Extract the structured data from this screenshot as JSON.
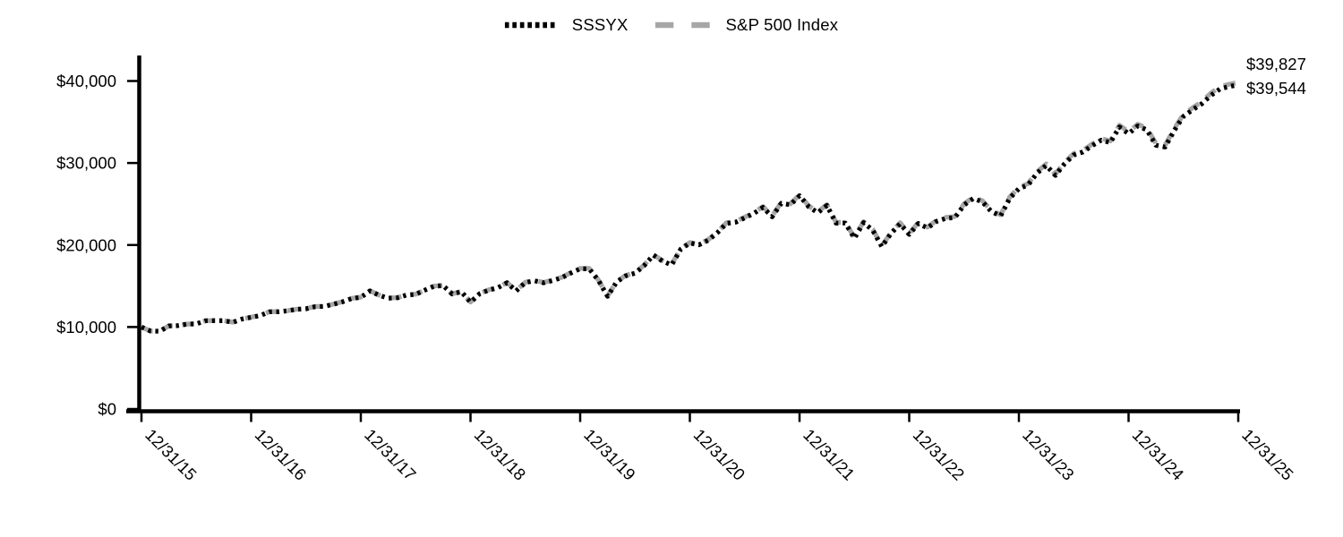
{
  "chart": {
    "kind": "fund-growth-line-chart",
    "background": "#ffffff",
    "axis_color": "#000000",
    "text_color": "#000000"
  },
  "chart_data": {
    "type": "line",
    "title": "",
    "xlabel": "",
    "ylabel": "",
    "x_frequency": "monthly",
    "x_start": "12/31/15",
    "x_end": "12/31/25",
    "x_tick_labels": [
      "12/31/15",
      "12/31/16",
      "12/31/17",
      "12/31/18",
      "12/31/19",
      "12/31/20",
      "12/31/21",
      "12/31/22",
      "12/31/23",
      "12/31/24",
      "12/31/25"
    ],
    "y_ticks": [
      0,
      10000,
      20000,
      30000,
      40000
    ],
    "y_tick_labels": [
      "$0",
      "$10,000",
      "$20,000",
      "$30,000",
      "$40,000"
    ],
    "ylim": [
      0,
      40000
    ],
    "grid": false,
    "legend_position": "top-center",
    "annotations": [
      {
        "text": "$39,827",
        "series": "S&P 500 Index"
      },
      {
        "text": "$39,544",
        "series": "SSSYX"
      }
    ],
    "series": [
      {
        "name": "SSSYX",
        "color": "#000000",
        "legend_style": "dotted",
        "final_value": 39544,
        "values": [
          10000,
          9502,
          9489,
          10132,
          10171,
          10353,
          10379,
          10762,
          10776,
          10777,
          10580,
          10971,
          11187,
          11399,
          11851,
          11864,
          11986,
          12154,
          12229,
          12479,
          12517,
          12774,
          13072,
          13472,
          13621,
          14400,
          13869,
          13515,
          13566,
          13892,
          13977,
          14496,
          14968,
          15052,
          14023,
          14307,
          13015,
          14057,
          14507,
          14789,
          15386,
          14408,
          15423,
          15643,
          15394,
          15681,
          16019,
          16600,
          17100,
          17092,
          15684,
          13746,
          15508,
          16245,
          16567,
          17500,
          18757,
          18043,
          17562,
          19483,
          20231,
          20025,
          20576,
          21477,
          22621,
          22778,
          23309,
          23861,
          24585,
          23440,
          25081,
          24906,
          26021,
          24673,
          23933,
          24820,
          22654,
          22694,
          20820,
          22738,
          21809,
          19800,
          21402,
          22597,
          21294,
          22630,
          22076,
          22886,
          23242,
          23342,
          24882,
          25680,
          25270,
          24063,
          23556,
          25705,
          26872,
          27322,
          28780,
          29704,
          28489,
          29900,
          30971,
          31346,
          32104,
          32788,
          32489,
          34395,
          33575,
          34507,
          34038,
          32168,
          31948,
          33963,
          35689,
          36481,
          37214,
          38235,
          39027,
          39323,
          39544
        ]
      },
      {
        "name": "S&P 500 Index",
        "color": "#a6a6a6",
        "legend_style": "dashed",
        "final_value": 39827,
        "values": [
          10000,
          9503,
          9490,
          10134,
          10173,
          10356,
          10383,
          10766,
          10781,
          10783,
          10586,
          10978,
          11195,
          11408,
          11861,
          11875,
          11997,
          12166,
          12242,
          12493,
          12532,
          12790,
          13089,
          13490,
          13640,
          14421,
          13890,
          13537,
          13589,
          13916,
          14002,
          14523,
          14996,
          15081,
          14051,
          14337,
          13043,
          14088,
          14540,
          14823,
          15423,
          14443,
          15461,
          15683,
          15434,
          15723,
          16063,
          16646,
          17149,
          17142,
          15731,
          13788,
          15556,
          16296,
          16620,
          17557,
          18819,
          18104,
          17622,
          19551,
          20303,
          20098,
          20652,
          21557,
          22707,
          22866,
          23400,
          23956,
          24684,
          23536,
          25185,
          25011,
          26132,
          24780,
          24038,
          24930,
          22756,
          22798,
          20916,
          22845,
          21913,
          19895,
          21506,
          22708,
          21400,
          22744,
          22189,
          23004,
          23363,
          23465,
          25015,
          25819,
          25408,
          24196,
          23687,
          25850,
          27025,
          27479,
          28947,
          29878,
          28658,
          30079,
          31158,
          31537,
          32302,
          32992,
          32693,
          34613,
          33790,
          34730,
          34260,
          32380,
          32160,
          34190,
          35930,
          36730,
          37470,
          38500,
          39300,
          39600,
          39827
        ]
      }
    ]
  }
}
